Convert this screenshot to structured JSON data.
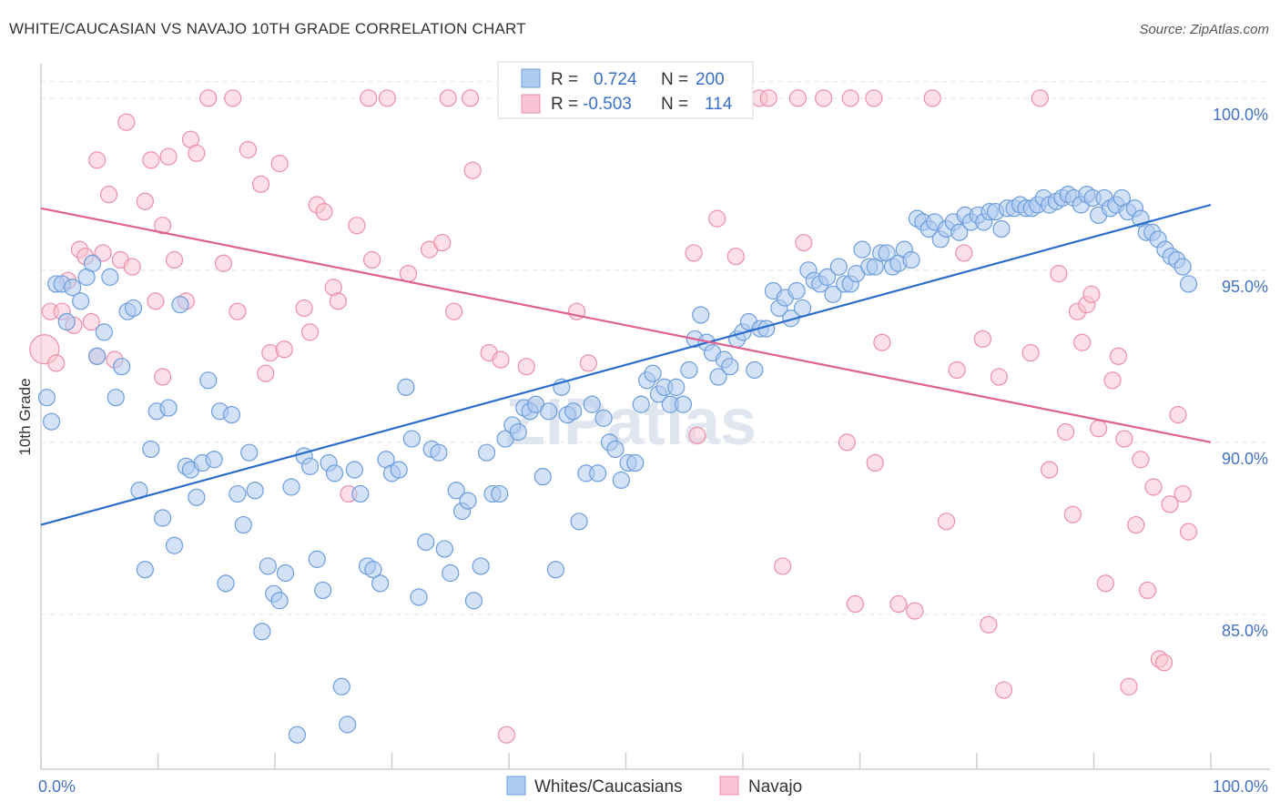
{
  "title": "WHITE/CAUCASIAN VS NAVAJO 10TH GRADE CORRELATION CHART",
  "source": "Source: ZipAtlas.com",
  "watermark": "ZIPatlas",
  "chart_data": {
    "type": "scatter",
    "ylabel": "10th Grade",
    "xlim": [
      0,
      100
    ],
    "ylim": [
      80.5,
      101
    ],
    "x_tick_labels": [
      "0.0%",
      "100.0%"
    ],
    "y_ticks": [
      85,
      90,
      95,
      100
    ],
    "y_tick_labels": [
      "85.0%",
      "90.0%",
      "95.0%",
      "100.0%"
    ],
    "legend": {
      "rows": [
        {
          "r_label": "R =",
          "r_value": "0.724",
          "n_label": "N =",
          "n_value": "200"
        },
        {
          "r_label": "R =",
          "r_value": "-0.503",
          "n_label": "N =",
          "n_value": "114"
        }
      ]
    },
    "colors": {
      "blue_fill": "#aecbf0",
      "blue_stroke": "#6c9ddb",
      "blue_line": "#2a6ccc",
      "pink_fill": "#f9c4d3",
      "pink_stroke": "#ec8ea9",
      "pink_line": "#e06090"
    },
    "series": [
      {
        "name": "Whites/Caucasians",
        "trend": {
          "x": [
            0,
            100
          ],
          "y": [
            87.6,
            96.9
          ]
        },
        "points": [
          [
            0.5,
            91.3
          ],
          [
            0.9,
            90.6
          ],
          [
            1.3,
            94.6
          ],
          [
            1.8,
            94.6
          ],
          [
            2.2,
            93.5
          ],
          [
            2.7,
            94.5
          ],
          [
            3.4,
            94.1
          ],
          [
            3.9,
            94.8
          ],
          [
            4.4,
            95.2
          ],
          [
            4.8,
            92.5
          ],
          [
            5.4,
            93.2
          ],
          [
            5.9,
            94.8
          ],
          [
            6.4,
            91.3
          ],
          [
            6.9,
            92.2
          ],
          [
            7.4,
            93.8
          ],
          [
            7.9,
            93.9
          ],
          [
            8.4,
            88.6
          ],
          [
            8.9,
            86.3
          ],
          [
            9.4,
            89.8
          ],
          [
            9.9,
            90.9
          ],
          [
            10.4,
            87.8
          ],
          [
            10.9,
            91.0
          ],
          [
            11.4,
            87.0
          ],
          [
            11.9,
            94.0
          ],
          [
            12.4,
            89.3
          ],
          [
            12.8,
            89.2
          ],
          [
            13.3,
            88.4
          ],
          [
            13.8,
            89.4
          ],
          [
            14.3,
            91.8
          ],
          [
            14.8,
            89.5
          ],
          [
            15.3,
            90.9
          ],
          [
            15.8,
            85.9
          ],
          [
            16.3,
            90.8
          ],
          [
            16.8,
            88.5
          ],
          [
            17.3,
            87.6
          ],
          [
            17.8,
            89.7
          ],
          [
            18.3,
            88.6
          ],
          [
            18.9,
            84.5
          ],
          [
            19.4,
            86.4
          ],
          [
            19.9,
            85.6
          ],
          [
            20.4,
            85.4
          ],
          [
            20.9,
            86.2
          ],
          [
            21.4,
            88.7
          ],
          [
            21.9,
            81.5
          ],
          [
            22.5,
            89.6
          ],
          [
            23.0,
            89.3
          ],
          [
            23.6,
            86.6
          ],
          [
            24.1,
            85.7
          ],
          [
            24.6,
            89.4
          ],
          [
            25.1,
            89.1
          ],
          [
            25.7,
            82.9
          ],
          [
            26.2,
            81.8
          ],
          [
            26.8,
            89.2
          ],
          [
            27.3,
            88.5
          ],
          [
            27.9,
            86.4
          ],
          [
            28.4,
            86.3
          ],
          [
            29.0,
            85.9
          ],
          [
            29.5,
            89.5
          ],
          [
            30.0,
            89.1
          ],
          [
            30.6,
            89.2
          ],
          [
            31.2,
            91.6
          ],
          [
            31.7,
            90.1
          ],
          [
            32.3,
            85.5
          ],
          [
            32.9,
            87.1
          ],
          [
            33.4,
            89.8
          ],
          [
            34.0,
            89.7
          ],
          [
            34.5,
            86.9
          ],
          [
            35.0,
            86.2
          ],
          [
            35.5,
            88.6
          ],
          [
            36.0,
            88.0
          ],
          [
            36.5,
            88.3
          ],
          [
            37.0,
            85.4
          ],
          [
            37.6,
            86.4
          ],
          [
            38.1,
            89.7
          ],
          [
            38.6,
            88.5
          ],
          [
            39.2,
            88.5
          ],
          [
            39.7,
            90.1
          ],
          [
            40.3,
            90.5
          ],
          [
            40.8,
            90.3
          ],
          [
            41.3,
            91.0
          ],
          [
            41.8,
            90.9
          ],
          [
            42.3,
            91.1
          ],
          [
            42.9,
            89.0
          ],
          [
            43.4,
            90.9
          ],
          [
            44.0,
            86.3
          ],
          [
            44.5,
            91.6
          ],
          [
            45.0,
            90.8
          ],
          [
            45.5,
            90.9
          ],
          [
            46.0,
            87.7
          ],
          [
            46.6,
            89.1
          ],
          [
            47.1,
            91.1
          ],
          [
            47.6,
            89.1
          ],
          [
            48.1,
            90.7
          ],
          [
            48.6,
            90.0
          ],
          [
            49.1,
            89.8
          ],
          [
            49.6,
            88.9
          ],
          [
            50.2,
            89.4
          ],
          [
            50.8,
            89.4
          ],
          [
            51.3,
            91.1
          ],
          [
            51.8,
            91.8
          ],
          [
            52.3,
            92.0
          ],
          [
            52.8,
            91.4
          ],
          [
            53.3,
            91.6
          ],
          [
            53.8,
            91.1
          ],
          [
            54.3,
            91.6
          ],
          [
            54.9,
            91.1
          ],
          [
            55.4,
            92.1
          ],
          [
            55.9,
            93.0
          ],
          [
            56.4,
            93.7
          ],
          [
            56.9,
            92.9
          ],
          [
            57.4,
            92.6
          ],
          [
            57.9,
            91.9
          ],
          [
            58.4,
            92.4
          ],
          [
            58.9,
            92.2
          ],
          [
            59.5,
            93.0
          ],
          [
            60.0,
            93.2
          ],
          [
            60.5,
            93.5
          ],
          [
            61.0,
            92.1
          ],
          [
            61.5,
            93.3
          ],
          [
            62.0,
            93.3
          ],
          [
            62.6,
            94.4
          ],
          [
            63.1,
            93.9
          ],
          [
            63.6,
            94.2
          ],
          [
            64.1,
            93.6
          ],
          [
            64.6,
            94.4
          ],
          [
            65.1,
            93.9
          ],
          [
            65.6,
            95.0
          ],
          [
            66.1,
            94.7
          ],
          [
            66.6,
            94.6
          ],
          [
            67.2,
            94.8
          ],
          [
            67.7,
            94.3
          ],
          [
            68.2,
            95.1
          ],
          [
            68.7,
            94.6
          ],
          [
            69.2,
            94.6
          ],
          [
            69.7,
            94.9
          ],
          [
            70.2,
            95.6
          ],
          [
            70.8,
            95.1
          ],
          [
            71.3,
            95.1
          ],
          [
            71.8,
            95.5
          ],
          [
            72.3,
            95.5
          ],
          [
            72.8,
            95.1
          ],
          [
            73.3,
            95.2
          ],
          [
            73.8,
            95.6
          ],
          [
            74.4,
            95.3
          ],
          [
            74.9,
            96.5
          ],
          [
            75.4,
            96.4
          ],
          [
            75.9,
            96.2
          ],
          [
            76.4,
            96.4
          ],
          [
            76.9,
            95.9
          ],
          [
            77.4,
            96.2
          ],
          [
            78.0,
            96.4
          ],
          [
            78.5,
            96.1
          ],
          [
            79.0,
            96.6
          ],
          [
            79.5,
            96.4
          ],
          [
            80.1,
            96.6
          ],
          [
            80.6,
            96.4
          ],
          [
            81.1,
            96.7
          ],
          [
            81.6,
            96.7
          ],
          [
            82.1,
            96.2
          ],
          [
            82.6,
            96.8
          ],
          [
            83.2,
            96.8
          ],
          [
            83.7,
            96.9
          ],
          [
            84.2,
            96.8
          ],
          [
            84.7,
            96.8
          ],
          [
            85.2,
            96.9
          ],
          [
            85.7,
            97.1
          ],
          [
            86.2,
            96.9
          ],
          [
            86.8,
            97.0
          ],
          [
            87.3,
            97.1
          ],
          [
            87.8,
            97.2
          ],
          [
            88.3,
            97.1
          ],
          [
            88.9,
            96.9
          ],
          [
            89.4,
            97.2
          ],
          [
            89.9,
            97.1
          ],
          [
            90.4,
            96.6
          ],
          [
            90.9,
            97.1
          ],
          [
            91.4,
            96.8
          ],
          [
            91.9,
            96.9
          ],
          [
            92.4,
            97.1
          ],
          [
            92.9,
            96.7
          ],
          [
            93.5,
            96.8
          ],
          [
            94.0,
            96.5
          ],
          [
            94.5,
            96.1
          ],
          [
            95.0,
            96.1
          ],
          [
            95.5,
            95.9
          ],
          [
            96.1,
            95.6
          ],
          [
            96.6,
            95.4
          ],
          [
            97.1,
            95.3
          ],
          [
            97.6,
            95.1
          ],
          [
            98.1,
            94.6
          ]
        ]
      },
      {
        "name": "Navajo",
        "trend": {
          "x": [
            0,
            100
          ],
          "y": [
            96.8,
            90.0
          ]
        },
        "points": [
          [
            0.3,
            92.7
          ],
          [
            0.8,
            93.8
          ],
          [
            1.3,
            92.3
          ],
          [
            1.8,
            93.8
          ],
          [
            2.3,
            94.7
          ],
          [
            2.8,
            93.4
          ],
          [
            3.3,
            95.6
          ],
          [
            3.8,
            95.4
          ],
          [
            4.3,
            93.5
          ],
          [
            4.8,
            92.5
          ],
          [
            4.8,
            98.2
          ],
          [
            5.3,
            95.5
          ],
          [
            5.8,
            97.2
          ],
          [
            6.3,
            92.4
          ],
          [
            6.8,
            95.3
          ],
          [
            7.3,
            99.3
          ],
          [
            7.8,
            95.1
          ],
          [
            8.9,
            97.0
          ],
          [
            9.4,
            98.2
          ],
          [
            9.8,
            94.1
          ],
          [
            10.4,
            91.9
          ],
          [
            10.4,
            96.3
          ],
          [
            10.9,
            98.3
          ],
          [
            11.4,
            95.3
          ],
          [
            12.4,
            94.1
          ],
          [
            12.8,
            98.8
          ],
          [
            13.3,
            98.4
          ],
          [
            14.3,
            100.0
          ],
          [
            15.6,
            95.2
          ],
          [
            16.4,
            100.0
          ],
          [
            16.8,
            93.8
          ],
          [
            17.7,
            98.5
          ],
          [
            18.8,
            97.5
          ],
          [
            19.2,
            92.0
          ],
          [
            19.6,
            92.6
          ],
          [
            20.4,
            98.1
          ],
          [
            20.8,
            92.7
          ],
          [
            22.5,
            93.9
          ],
          [
            23.0,
            93.2
          ],
          [
            23.6,
            96.9
          ],
          [
            24.2,
            96.7
          ],
          [
            25.0,
            94.5
          ],
          [
            25.4,
            94.1
          ],
          [
            26.3,
            88.5
          ],
          [
            27.0,
            96.3
          ],
          [
            28.0,
            100.0
          ],
          [
            28.3,
            95.3
          ],
          [
            29.6,
            100.0
          ],
          [
            31.4,
            94.9
          ],
          [
            33.2,
            95.6
          ],
          [
            34.3,
            95.8
          ],
          [
            34.8,
            100.0
          ],
          [
            35.3,
            93.8
          ],
          [
            36.7,
            100.0
          ],
          [
            36.9,
            97.9
          ],
          [
            38.3,
            92.6
          ],
          [
            39.3,
            92.4
          ],
          [
            39.8,
            81.5
          ],
          [
            41.5,
            92.2
          ],
          [
            42.4,
            100.0
          ],
          [
            43.1,
            100.0
          ],
          [
            45.8,
            93.8
          ],
          [
            46.8,
            92.3
          ],
          [
            53.7,
            100.0
          ],
          [
            55.8,
            95.5
          ],
          [
            56.1,
            90.2
          ],
          [
            57.8,
            96.5
          ],
          [
            58.3,
            100.0
          ],
          [
            59.4,
            95.4
          ],
          [
            61.4,
            100.0
          ],
          [
            62.2,
            100.0
          ],
          [
            63.4,
            86.4
          ],
          [
            64.7,
            100.0
          ],
          [
            65.2,
            95.8
          ],
          [
            66.9,
            100.0
          ],
          [
            68.9,
            90.0
          ],
          [
            69.2,
            100.0
          ],
          [
            69.6,
            85.3
          ],
          [
            71.2,
            100.0
          ],
          [
            71.3,
            89.4
          ],
          [
            71.9,
            92.9
          ],
          [
            73.3,
            85.3
          ],
          [
            74.7,
            85.1
          ],
          [
            76.2,
            100.0
          ],
          [
            77.4,
            87.7
          ],
          [
            78.3,
            92.1
          ],
          [
            78.9,
            95.5
          ],
          [
            80.5,
            93.0
          ],
          [
            81.0,
            84.7
          ],
          [
            81.9,
            91.9
          ],
          [
            82.3,
            82.8
          ],
          [
            84.6,
            92.6
          ],
          [
            85.4,
            100.0
          ],
          [
            86.2,
            89.2
          ],
          [
            87.0,
            94.9
          ],
          [
            87.6,
            90.3
          ],
          [
            88.2,
            87.9
          ],
          [
            88.6,
            93.8
          ],
          [
            89.0,
            92.9
          ],
          [
            89.4,
            94.0
          ],
          [
            89.8,
            94.3
          ],
          [
            90.4,
            90.4
          ],
          [
            91.0,
            85.9
          ],
          [
            91.6,
            91.8
          ],
          [
            92.1,
            92.5
          ],
          [
            92.6,
            90.1
          ],
          [
            93.0,
            82.9
          ],
          [
            93.6,
            87.6
          ],
          [
            94.0,
            89.5
          ],
          [
            94.6,
            85.7
          ],
          [
            95.1,
            88.7
          ],
          [
            95.6,
            83.7
          ],
          [
            96.0,
            83.6
          ],
          [
            96.5,
            88.2
          ],
          [
            97.2,
            90.8
          ],
          [
            97.6,
            88.5
          ],
          [
            98.1,
            87.4
          ]
        ]
      }
    ]
  }
}
